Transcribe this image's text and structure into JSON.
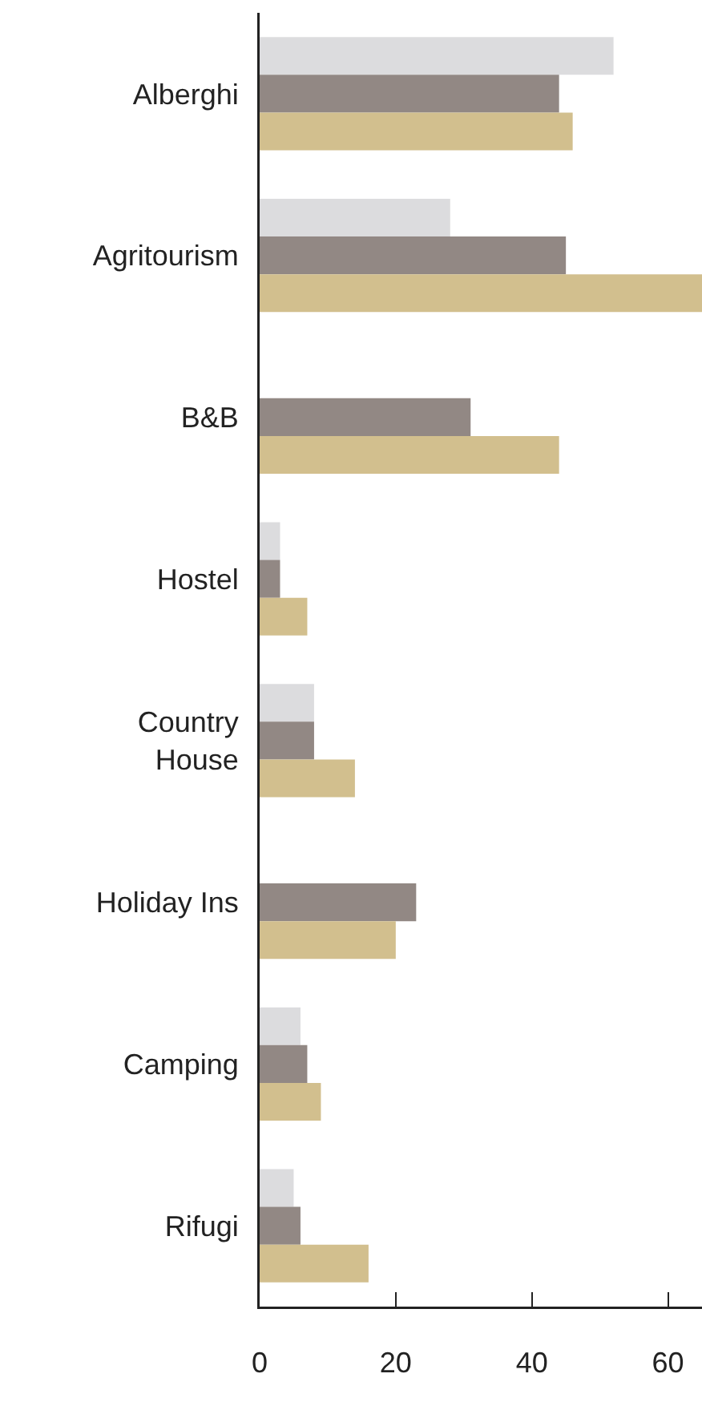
{
  "chart_data": {
    "type": "bar",
    "orientation": "horizontal",
    "categories": [
      "Alberghi",
      "Agritourism",
      "B&B",
      "Hostel",
      "Country House",
      "Holiday Ins",
      "Camping",
      "Rifugi"
    ],
    "series": [
      {
        "color": "#dcdcde",
        "values": [
          52,
          28,
          null,
          3,
          8,
          null,
          6,
          5
        ]
      },
      {
        "color": "#928884",
        "values": [
          44,
          45,
          31,
          3,
          8,
          23,
          7,
          6
        ]
      },
      {
        "color": "#d2bf8e",
        "values": [
          46,
          65,
          44,
          7,
          14,
          20,
          9,
          16
        ]
      }
    ],
    "xlim": [
      0,
      65
    ],
    "xticks": [
      0,
      20,
      40,
      60
    ],
    "grid": false
  }
}
